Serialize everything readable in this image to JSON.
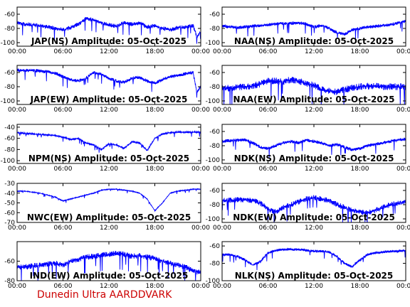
{
  "footer": "Dunedin Ultra AARDDVARK",
  "colors": {
    "trace": "#0000ff",
    "axes": "#000000",
    "footer": "#cc0000"
  },
  "chart_data": [
    {
      "type": "line",
      "title": "JAP(NS) Amplitude: 05-Oct-2025",
      "x_ticks": [
        "00:00",
        "06:00",
        "12:00",
        "18:00",
        "00:00"
      ],
      "xlim": [
        0,
        24
      ],
      "y_ticks": [
        -100,
        -80,
        -60
      ],
      "ylim": [
        -105,
        -50
      ],
      "series": [
        {
          "x": [
            0,
            1,
            2,
            3,
            4,
            5,
            6,
            7,
            8,
            9,
            10,
            11,
            12,
            13,
            14,
            15,
            16,
            17,
            18,
            19,
            20,
            21,
            22,
            23,
            23.5,
            24
          ],
          "values": [
            -72,
            -74,
            -75,
            -76,
            -78,
            -80,
            -82,
            -79,
            -74,
            -66,
            -68,
            -72,
            -75,
            -77,
            -72,
            -74,
            -72,
            -78,
            -76,
            -80,
            -82,
            -79,
            -78,
            -76,
            -92,
            -84
          ],
          "spread": 6
        }
      ]
    },
    {
      "type": "line",
      "title": "NAA(NS) Amplitude: 05-Oct-2025",
      "x_ticks": [
        "00:00",
        "06:00",
        "12:00",
        "18:00",
        "00:00"
      ],
      "xlim": [
        0,
        24
      ],
      "y_ticks": [
        -100,
        -80,
        -60
      ],
      "ylim": [
        -105,
        -50
      ],
      "series": [
        {
          "x": [
            0,
            1,
            2,
            3,
            4,
            5,
            6,
            7,
            8,
            9,
            10,
            11,
            12,
            13,
            14,
            15,
            16,
            17,
            18,
            19,
            20,
            21,
            22,
            23,
            24
          ],
          "values": [
            -76,
            -78,
            -79,
            -78,
            -77,
            -76,
            -75,
            -74,
            -73,
            -73,
            -72,
            -74,
            -78,
            -76,
            -80,
            -86,
            -88,
            -82,
            -80,
            -78,
            -77,
            -76,
            -75,
            -72,
            -70
          ],
          "spread": 5
        }
      ]
    },
    {
      "type": "line",
      "title": "JAP(EW) Amplitude: 05-Oct-2025",
      "x_ticks": [
        "00:00",
        "06:00",
        "12:00",
        "18:00",
        "00:00"
      ],
      "xlim": [
        0,
        24
      ],
      "y_ticks": [
        -100,
        -80,
        -60
      ],
      "ylim": [
        -105,
        -50
      ],
      "series": [
        {
          "x": [
            0,
            1,
            2,
            3,
            4,
            5,
            6,
            7,
            8,
            9,
            10,
            11,
            12,
            13,
            14,
            15,
            16,
            17,
            18,
            19,
            20,
            21,
            22,
            23,
            23.5,
            24
          ],
          "values": [
            -57,
            -57,
            -57,
            -58,
            -59,
            -61,
            -66,
            -70,
            -72,
            -68,
            -60,
            -62,
            -68,
            -72,
            -74,
            -68,
            -67,
            -72,
            -75,
            -70,
            -66,
            -64,
            -62,
            -60,
            -88,
            -80
          ],
          "spread": 5
        }
      ]
    },
    {
      "type": "line",
      "title": "NAA(EW) Amplitude: 05-Oct-2025",
      "x_ticks": [
        "00:00",
        "06:00",
        "12:00",
        "18:00",
        "00:00"
      ],
      "xlim": [
        0,
        24
      ],
      "y_ticks": [
        -100,
        -80,
        -60
      ],
      "ylim": [
        -105,
        -50
      ],
      "series": [
        {
          "x": [
            0,
            1,
            2,
            3,
            4,
            5,
            6,
            7,
            8,
            9,
            10,
            11,
            12,
            13,
            14,
            15,
            16,
            17,
            18,
            19,
            20,
            21,
            22,
            23,
            24
          ],
          "values": [
            -82,
            -82,
            -81,
            -80,
            -79,
            -76,
            -72,
            -72,
            -73,
            -70,
            -72,
            -76,
            -78,
            -84,
            -86,
            -88,
            -84,
            -82,
            -80,
            -79,
            -79,
            -80,
            -80,
            -80,
            -80
          ],
          "spread": 10
        }
      ]
    },
    {
      "type": "line",
      "title": "NPM(NS) Amplitude: 05-Oct-2025",
      "x_ticks": [
        "00:00",
        "06:00",
        "12:00",
        "18:00",
        "00:00"
      ],
      "xlim": [
        0,
        24
      ],
      "y_ticks": [
        -100,
        -80,
        -60,
        -40
      ],
      "ylim": [
        -105,
        -35
      ],
      "series": [
        {
          "x": [
            0,
            1,
            2,
            3,
            4,
            5,
            6,
            7,
            8,
            9,
            10,
            11,
            12,
            13,
            14,
            15,
            16,
            17,
            18,
            19,
            20,
            21,
            22,
            23,
            24
          ],
          "values": [
            -50,
            -51,
            -52,
            -53,
            -54,
            -55,
            -58,
            -62,
            -60,
            -68,
            -72,
            -80,
            -70,
            -72,
            -78,
            -66,
            -68,
            -82,
            -60,
            -52,
            -50,
            -49,
            -49,
            -49,
            -49
          ],
          "spread": 3
        }
      ]
    },
    {
      "type": "line",
      "title": "NDK(NS) Amplitude: 05-Oct-2025",
      "x_ticks": [
        "00:00",
        "06:00",
        "12:00",
        "18:00",
        "00:00"
      ],
      "xlim": [
        0,
        24
      ],
      "y_ticks": [
        -100,
        -80,
        -60
      ],
      "ylim": [
        -105,
        -50
      ],
      "series": [
        {
          "x": [
            0,
            1,
            2,
            3,
            4,
            5,
            6,
            7,
            8,
            9,
            10,
            11,
            12,
            13,
            14,
            15,
            16,
            17,
            18,
            19,
            20,
            21,
            22,
            23,
            24
          ],
          "values": [
            -74,
            -73,
            -72,
            -72,
            -76,
            -82,
            -84,
            -80,
            -76,
            -74,
            -76,
            -72,
            -74,
            -76,
            -80,
            -78,
            -82,
            -86,
            -84,
            -80,
            -78,
            -76,
            -74,
            -72,
            -71
          ],
          "spread": 5
        }
      ]
    },
    {
      "type": "line",
      "title": "NWC(EW) Amplitude: 05-Oct-2025",
      "x_ticks": [
        "00:00",
        "06:00",
        "12:00",
        "18:00",
        "00:00"
      ],
      "xlim": [
        0,
        24
      ],
      "y_ticks": [
        -70,
        -60,
        -50,
        -40,
        -30
      ],
      "ylim": [
        -70,
        -30
      ],
      "series": [
        {
          "x": [
            0,
            1,
            2,
            3,
            4,
            5,
            6,
            7,
            8,
            9,
            10,
            11,
            12,
            13,
            14,
            15,
            16,
            17,
            18,
            19,
            20,
            21,
            22,
            23,
            24
          ],
          "values": [
            -38,
            -38,
            -39,
            -40,
            -42,
            -44,
            -48,
            -46,
            -44,
            -42,
            -40,
            -37,
            -36,
            -36,
            -37,
            -38,
            -40,
            -46,
            -58,
            -50,
            -40,
            -38,
            -37,
            -36,
            -36
          ],
          "spread": 1
        }
      ]
    },
    {
      "type": "line",
      "title": "NDK(EW) Amplitude: 05-Oct-2025",
      "x_ticks": [
        "00:00",
        "06:00",
        "12:00",
        "18:00",
        "00:00"
      ],
      "xlim": [
        0,
        24
      ],
      "y_ticks": [
        -100,
        -80,
        -60
      ],
      "ylim": [
        -105,
        -50
      ],
      "series": [
        {
          "x": [
            0,
            1,
            2,
            3,
            4,
            5,
            6,
            7,
            8,
            9,
            10,
            11,
            12,
            13,
            14,
            15,
            16,
            17,
            18,
            19,
            20,
            21,
            22,
            23,
            24
          ],
          "values": [
            -74,
            -74,
            -73,
            -73,
            -74,
            -78,
            -86,
            -90,
            -84,
            -80,
            -76,
            -72,
            -70,
            -72,
            -74,
            -80,
            -84,
            -88,
            -90,
            -92,
            -88,
            -84,
            -80,
            -78,
            -76
          ],
          "spread": 8
        }
      ]
    },
    {
      "type": "line",
      "title": "IND(EW) Amplitude: 05-Oct-2025",
      "x_ticks": [
        "00:00",
        "06:00",
        "12:00",
        "18:00",
        "00:00"
      ],
      "xlim": [
        0,
        24
      ],
      "y_ticks": [
        -80,
        -60
      ],
      "ylim": [
        -80,
        -40
      ],
      "series": [
        {
          "x": [
            0,
            1,
            2,
            3,
            4,
            5,
            6,
            7,
            8,
            9,
            10,
            11,
            12,
            13,
            14,
            15,
            16,
            17,
            18,
            19,
            20,
            21,
            22,
            23,
            24
          ],
          "values": [
            -66,
            -66,
            -65,
            -64,
            -63,
            -62,
            -64,
            -60,
            -58,
            -56,
            -55,
            -54,
            -53,
            -52,
            -53,
            -55,
            -54,
            -56,
            -57,
            -60,
            -62,
            -64,
            -66,
            -70,
            -72
          ],
          "spread": 6
        }
      ]
    },
    {
      "type": "line",
      "title": "NLK(NS) Amplitude: 05-Oct-2025",
      "x_ticks": [
        "00:00",
        "06:00",
        "12:00",
        "18:00",
        "00:00"
      ],
      "xlim": [
        0,
        24
      ],
      "y_ticks": [
        -100,
        -80,
        -60
      ],
      "ylim": [
        -100,
        -55
      ],
      "series": [
        {
          "x": [
            0,
            1,
            2,
            3,
            4,
            5,
            6,
            7,
            8,
            9,
            10,
            11,
            12,
            13,
            14,
            15,
            16,
            17,
            18,
            19,
            20,
            21,
            22,
            23,
            24
          ],
          "values": [
            -70,
            -70,
            -72,
            -76,
            -82,
            -78,
            -68,
            -65,
            -64,
            -64,
            -64,
            -65,
            -66,
            -66,
            -67,
            -72,
            -80,
            -84,
            -76,
            -70,
            -68,
            -67,
            -66,
            -66,
            -65
          ],
          "spread": 3
        }
      ]
    }
  ]
}
